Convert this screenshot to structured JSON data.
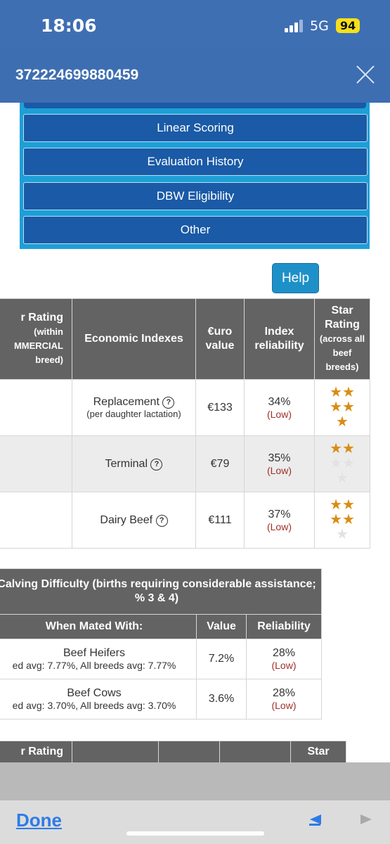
{
  "status": {
    "time": "18:06",
    "network": "5G",
    "battery": "94"
  },
  "header": {
    "title": "372224699880459"
  },
  "menu": {
    "items": [
      "Linear Scoring",
      "Evaluation History",
      "DBW Eligibility",
      "Other"
    ]
  },
  "help_label": "Help",
  "indexes": {
    "headers": {
      "rating_within": "r Rating",
      "rating_within_sub": "(within MMERCIAL breed)",
      "economic": "Economic Indexes",
      "euro": "€uro value",
      "reliability": "Index reliability",
      "star_title": "Star Rating",
      "star_sub": "(across all beef breeds)"
    },
    "rows": [
      {
        "name": "Replacement",
        "sub": "(per daughter lactation)",
        "value": "€133",
        "reliability": "34%",
        "level": "(Low)",
        "stars": 5
      },
      {
        "name": "Terminal",
        "sub": "",
        "value": "€79",
        "reliability": "35%",
        "level": "(Low)",
        "stars": 2
      },
      {
        "name": "Dairy Beef",
        "sub": "",
        "value": "€111",
        "reliability": "37%",
        "level": "(Low)",
        "stars": 4
      }
    ]
  },
  "calving": {
    "caption": "Calving Difficulty (births requiring considerable assistance; % 3 & 4)",
    "headers": {
      "mated": "When Mated With:",
      "value": "Value",
      "reliability": "Reliability"
    },
    "rows": [
      {
        "group": "Beef Heifers",
        "avg": "ed avg: 7.77%, All breeds avg: 7.77%",
        "value": "7.2%",
        "reliability": "28%",
        "level": "(Low)"
      },
      {
        "group": "Beef Cows",
        "avg": "ed avg: 3.70%, All breeds avg: 3.70%",
        "value": "3.6%",
        "reliability": "28%",
        "level": "(Low)"
      }
    ]
  },
  "next_table": {
    "rating": "r Rating",
    "star": "Star"
  },
  "bottom": {
    "done": "Done"
  }
}
